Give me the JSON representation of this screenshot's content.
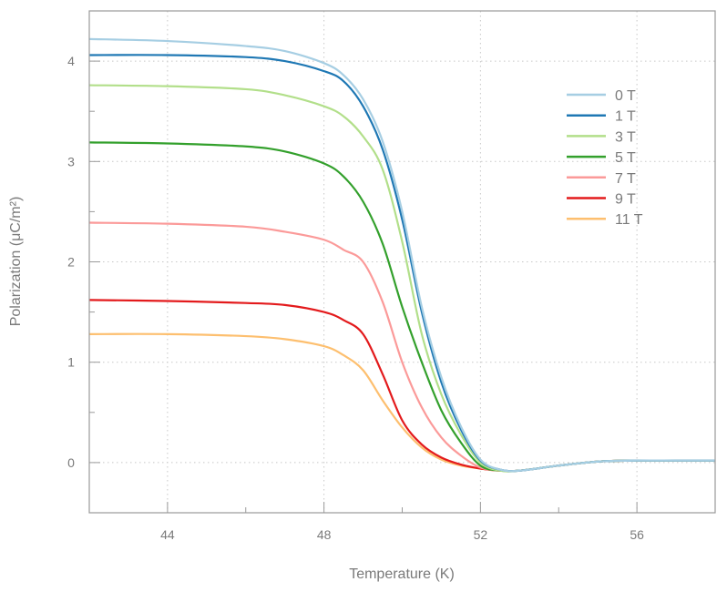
{
  "chart_data": {
    "type": "line",
    "title": "",
    "xlabel": "Temperature (K)",
    "ylabel": "Polarization (μC/m²)",
    "xlim": [
      42,
      58
    ],
    "ylim": [
      -0.5,
      4.5
    ],
    "xticks": [
      44,
      48,
      52,
      56
    ],
    "xtick_labels": [
      "44",
      "48",
      "52",
      "56"
    ],
    "yticks": [
      0,
      1,
      2,
      3,
      4
    ],
    "ytick_labels": [
      "0",
      "1",
      "2",
      "3",
      "4"
    ],
    "grid": true,
    "legend_position": "right",
    "x": [
      42,
      44,
      46,
      47,
      48,
      48.5,
      49,
      49.5,
      50,
      50.5,
      51,
      51.5,
      52,
      52.5,
      53,
      54,
      55,
      56,
      57,
      58
    ],
    "series": [
      {
        "name": "0 T",
        "color": "#a6cee3",
        "values": [
          4.22,
          4.2,
          4.15,
          4.1,
          3.98,
          3.86,
          3.62,
          3.2,
          2.5,
          1.55,
          0.85,
          0.36,
          0.03,
          -0.07,
          -0.08,
          -0.03,
          0.01,
          0.02,
          0.02,
          0.02
        ]
      },
      {
        "name": "1 T",
        "color": "#1f78b4",
        "values": [
          4.06,
          4.06,
          4.04,
          4.0,
          3.9,
          3.8,
          3.55,
          3.12,
          2.42,
          1.5,
          0.8,
          0.33,
          0.02,
          -0.07,
          -0.08,
          -0.03,
          0.01,
          0.02,
          0.02,
          0.02
        ]
      },
      {
        "name": "3 T",
        "color": "#b2df8a",
        "values": [
          3.76,
          3.75,
          3.72,
          3.66,
          3.55,
          3.45,
          3.25,
          2.92,
          2.2,
          1.28,
          0.68,
          0.28,
          0.0,
          -0.08,
          -0.08,
          -0.03,
          0.01,
          0.02,
          0.02,
          0.02
        ]
      },
      {
        "name": "5 T",
        "color": "#33a02c",
        "values": [
          3.19,
          3.18,
          3.15,
          3.1,
          2.98,
          2.85,
          2.6,
          2.18,
          1.55,
          1.0,
          0.52,
          0.2,
          -0.03,
          -0.08,
          -0.08,
          -0.03,
          0.01,
          0.02,
          0.02,
          0.02
        ]
      },
      {
        "name": "7 T",
        "color": "#fb9a99",
        "values": [
          2.39,
          2.38,
          2.35,
          2.3,
          2.22,
          2.12,
          2.0,
          1.6,
          1.0,
          0.55,
          0.25,
          0.07,
          -0.05,
          -0.08,
          -0.08,
          -0.03,
          0.01,
          0.02,
          0.02,
          0.02
        ]
      },
      {
        "name": "9 T",
        "color": "#e31a1c",
        "values": [
          1.62,
          1.61,
          1.59,
          1.57,
          1.5,
          1.42,
          1.28,
          0.88,
          0.42,
          0.18,
          0.05,
          -0.02,
          -0.06,
          -0.08,
          -0.08,
          -0.03,
          0.01,
          0.02,
          0.02,
          0.02
        ]
      },
      {
        "name": "11 T",
        "color": "#fdbf6f",
        "values": [
          1.28,
          1.28,
          1.26,
          1.23,
          1.16,
          1.07,
          0.92,
          0.62,
          0.35,
          0.15,
          0.03,
          -0.03,
          -0.06,
          -0.08,
          -0.08,
          -0.03,
          0.01,
          0.02,
          0.02,
          0.02
        ]
      }
    ]
  }
}
